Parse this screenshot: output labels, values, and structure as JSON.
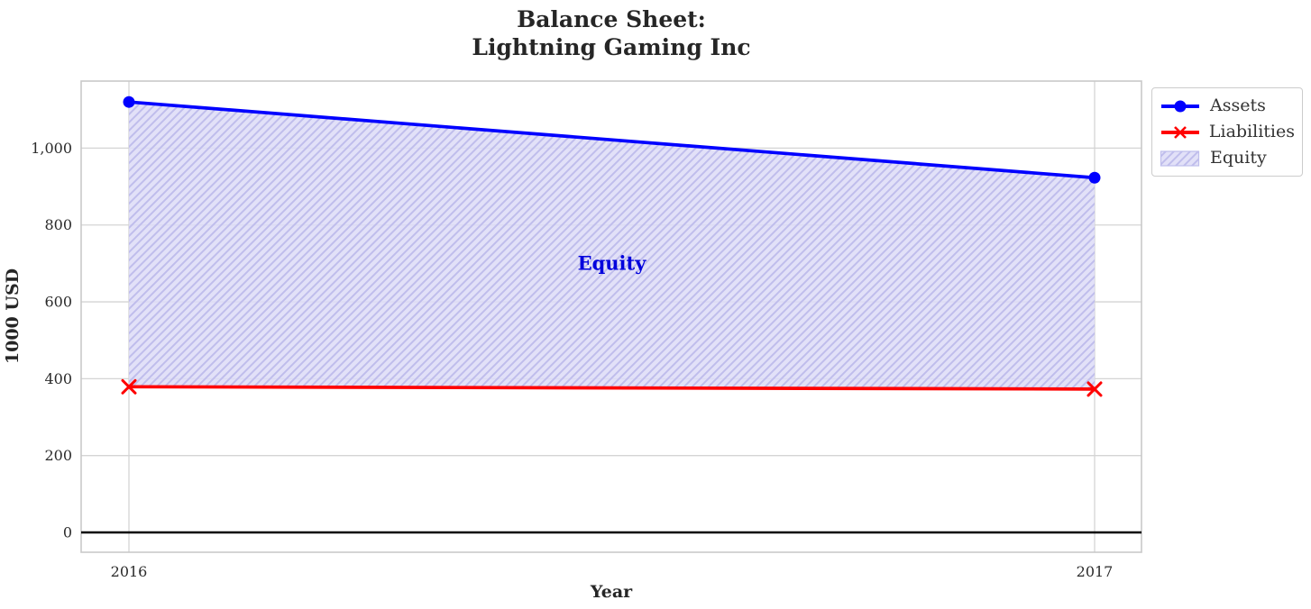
{
  "title": "Balance Sheet:\nLightning Gaming Inc",
  "chart_data": {
    "type": "line",
    "categories": [
      "2016",
      "2017"
    ],
    "xlabel": "Year",
    "ylabel": "1000 USD",
    "series": [
      {
        "name": "Assets",
        "values": [
          1120,
          923
        ],
        "color": "#0000ff",
        "marker": "circle"
      },
      {
        "name": "Liabilities",
        "values": [
          379,
          373
        ],
        "color": "#ff0000",
        "marker": "x"
      }
    ],
    "fill_between": {
      "name": "Equity",
      "between": [
        "Liabilities",
        "Assets"
      ],
      "values": [
        741,
        550
      ],
      "facecolor": "#dddcf7",
      "hatchcolor": "#bfbdec",
      "hatch": "///"
    },
    "annotation": {
      "text": "Equity",
      "x": 2016.5,
      "y": 700,
      "color": "#0000dd"
    },
    "yticks": [
      0,
      200,
      400,
      600,
      800,
      1000
    ],
    "ytick_labels": [
      "0",
      "200",
      "400",
      "600",
      "800",
      "1,000"
    ],
    "ylim": [
      -52,
      1174
    ],
    "grid": true,
    "zero_line": true,
    "legend": {
      "position": "upper-right-outside",
      "items": [
        "Assets",
        "Liabilities",
        "Equity"
      ]
    }
  },
  "colors": {
    "text": "#262626",
    "gridline": "#d4d4d4",
    "spine": "#c9c9c9",
    "zero_line": "#000000"
  }
}
